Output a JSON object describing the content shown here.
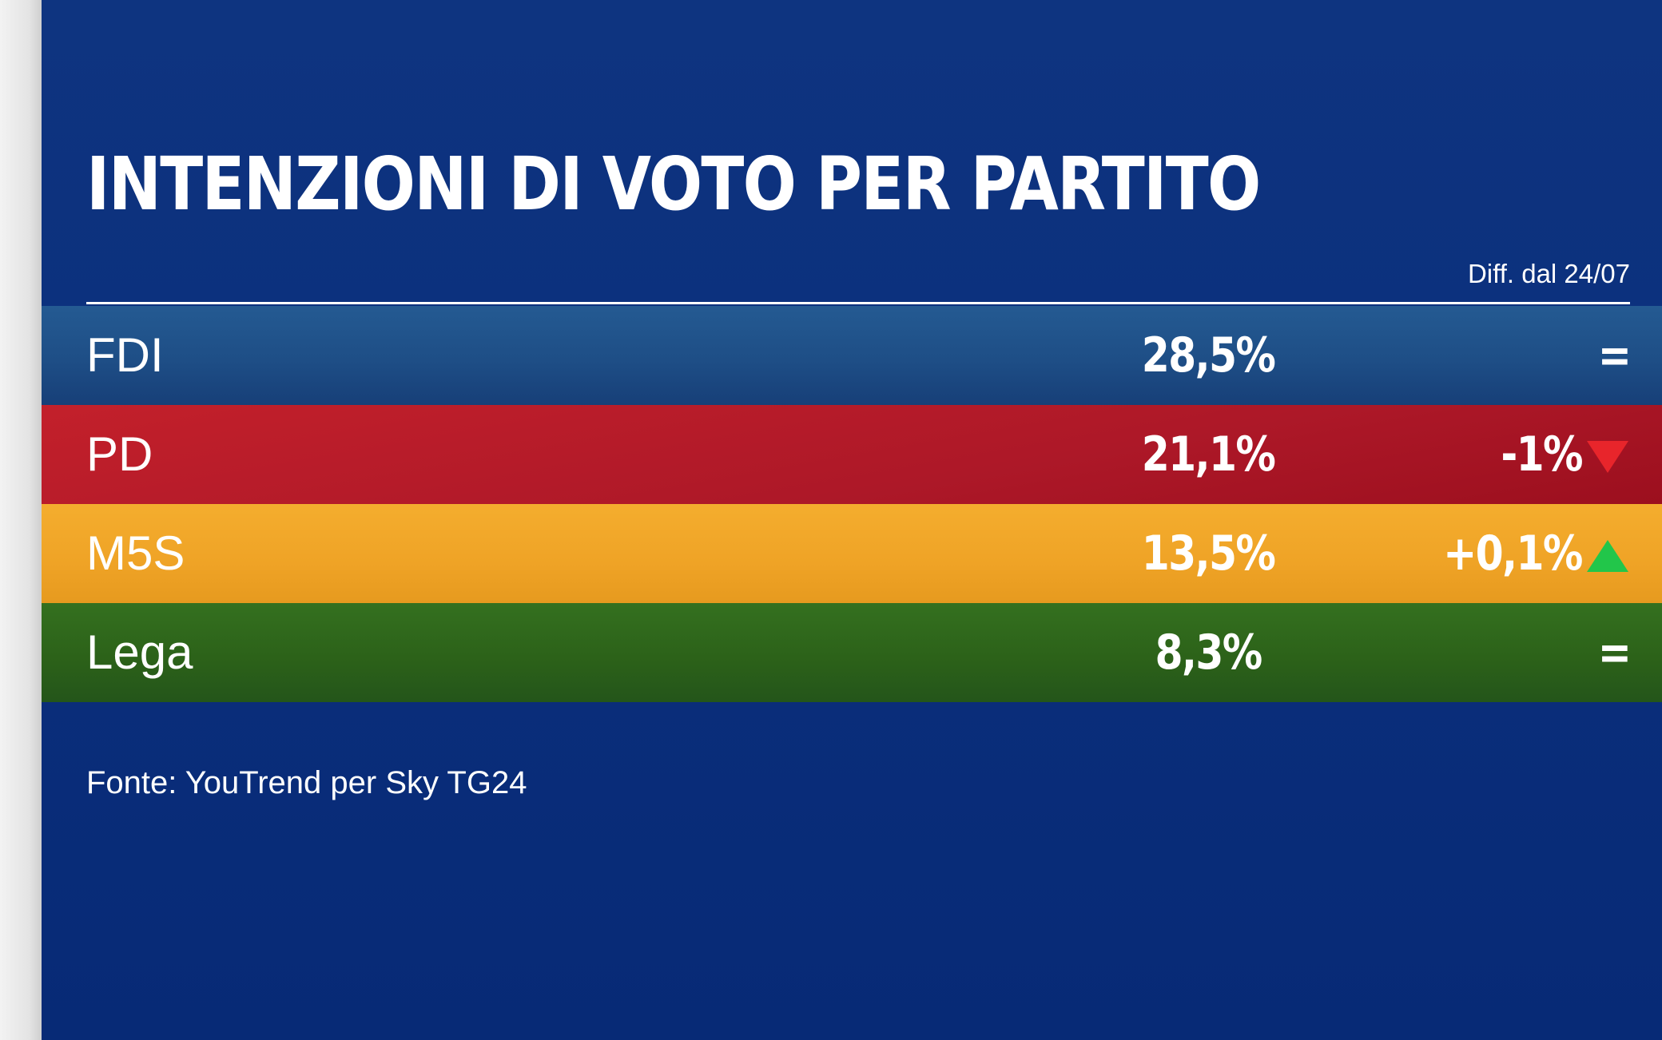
{
  "chart_data": {
    "type": "table",
    "title": "INTENZIONI DI VOTO PER PARTITO",
    "diff_header": "Diff. dal 24/07",
    "rows": [
      {
        "party": "FDI",
        "value": "28,5%",
        "diff": "=",
        "trend": "equal",
        "color": "#1e4e86"
      },
      {
        "party": "PD",
        "value": "21,1%",
        "diff": "-1%",
        "trend": "down",
        "color": "#ad1828"
      },
      {
        "party": "M5S",
        "value": "13,5%",
        "diff": "+0,1%",
        "trend": "up",
        "color": "#efa326"
      },
      {
        "party": "Lega",
        "value": "8,3%",
        "diff": "=",
        "trend": "equal",
        "color": "#2c6219"
      }
    ],
    "values": [
      28.5,
      21.1,
      13.5,
      8.3
    ],
    "diffs": [
      0,
      -1,
      0.1,
      0
    ],
    "source": "Fonte: YouTrend per Sky TG24"
  },
  "colors": {
    "background": "#0b2f7c",
    "arrow_down": "#e8252b",
    "arrow_up": "#22c64a"
  }
}
